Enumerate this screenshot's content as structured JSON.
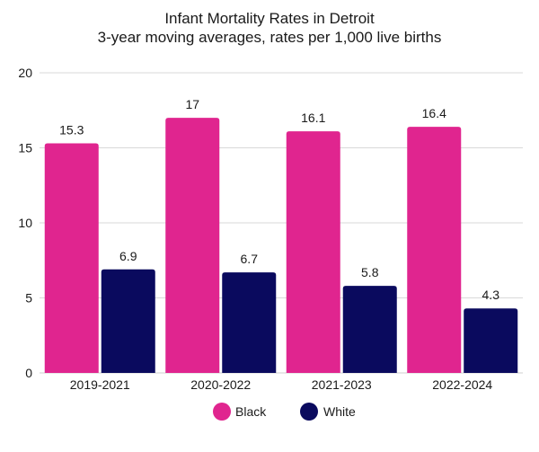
{
  "chart_data": {
    "type": "bar",
    "title": "Infant Mortality Rates in Detroit",
    "subtitle": "3-year moving averages, rates per 1,000 live births",
    "xlabel": "",
    "ylabel": "",
    "categories": [
      "2019-2021",
      "2020-2022",
      "2021-2023",
      "2022-2024"
    ],
    "series": [
      {
        "name": "Black",
        "values": [
          15.3,
          17,
          16.1,
          16.4
        ],
        "labels": [
          "15.3",
          "17",
          "16.1",
          "16.4"
        ],
        "color": "#e0258f"
      },
      {
        "name": "White",
        "values": [
          6.9,
          6.7,
          5.8,
          4.3
        ],
        "labels": [
          "6.9",
          "6.7",
          "5.8",
          "4.3"
        ],
        "color": "#0a0a5e"
      }
    ],
    "ylim": [
      0,
      20
    ],
    "yticks": [
      0,
      5,
      10,
      15,
      20
    ],
    "grid": true,
    "legend": "bottom-center"
  }
}
